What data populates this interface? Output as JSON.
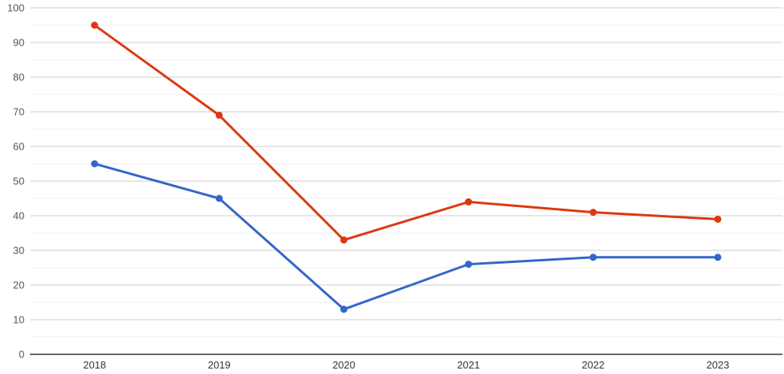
{
  "chart_data": {
    "type": "line",
    "title": "",
    "xlabel": "",
    "ylabel": "",
    "categories": [
      "2018",
      "2019",
      "2020",
      "2021",
      "2022",
      "2023"
    ],
    "series": [
      {
        "id": "blue-series",
        "color": "#3366CC",
        "values": [
          55,
          45,
          13,
          26,
          28,
          28
        ]
      },
      {
        "id": "red-series",
        "color": "#DC3912",
        "values": [
          95,
          69,
          33,
          44,
          41,
          39
        ]
      }
    ],
    "ylim": [
      0,
      100
    ],
    "y_ticks": [
      0,
      10,
      20,
      30,
      40,
      50,
      60,
      70,
      80,
      90,
      100
    ],
    "y_minor_step": 5,
    "grid": true,
    "legend_position": "none"
  },
  "style": {
    "background": "#FFFFFF",
    "major_gridline_color": "#CCCCCC",
    "minor_gridline_color": "#EDEDED",
    "baseline_color": "#333333",
    "y_tick_text_color": "#555555",
    "x_tick_text_color": "#333333",
    "point_radius": 4.5,
    "line_width": 3
  }
}
